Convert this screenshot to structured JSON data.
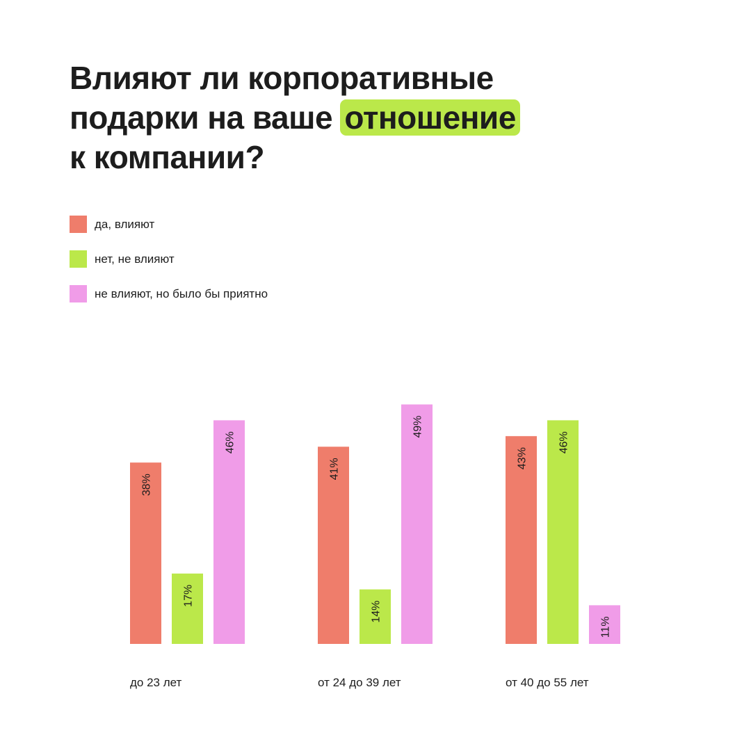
{
  "title": {
    "before": "Влияют ли корпоративные",
    "line2_start": "подарки на ваше ",
    "highlight": "отношение",
    "line3": "к компании?",
    "highlight_color": "#bbe84a"
  },
  "chart_data": {
    "type": "bar",
    "categories": [
      "до 23 лет",
      "от 24 до 39 лет",
      "от 40 до 55 лет"
    ],
    "series": [
      {
        "name": "да, влияют",
        "color": "#ef7d6b",
        "values": [
          38,
          41,
          43
        ],
        "labels": [
          "38%",
          "41%",
          "43%"
        ]
      },
      {
        "name": "нет, не влияют",
        "color": "#bbe84a",
        "values": [
          17,
          14,
          46
        ],
        "labels": [
          "17%",
          "14%",
          "46%"
        ]
      },
      {
        "name": "не влияют, но было бы приятно",
        "color": "#f09ce8",
        "values": [
          46,
          49,
          11
        ],
        "labels": [
          "46%",
          "49%",
          "11%"
        ]
      }
    ],
    "unit": "%",
    "legend_position": "top-left",
    "grid": false
  }
}
